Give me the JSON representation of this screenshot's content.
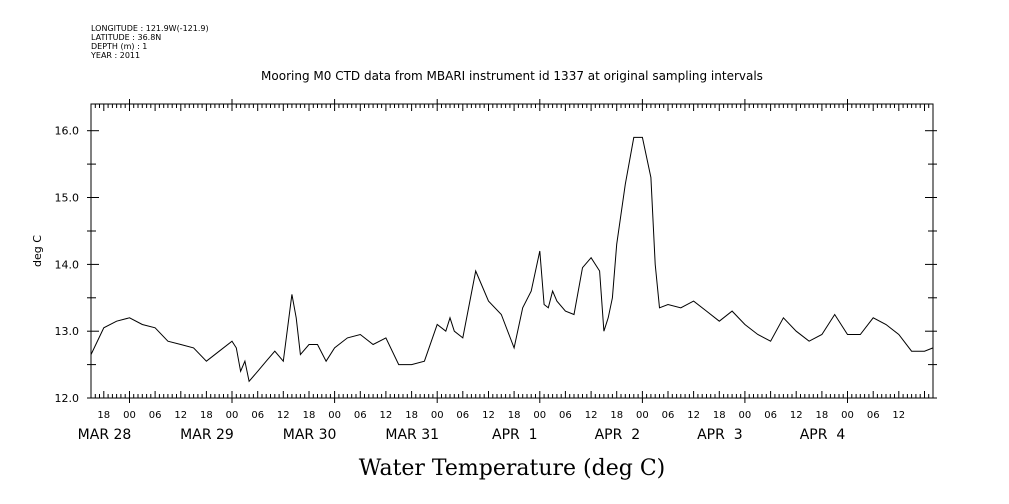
{
  "meta": {
    "longitude": "LONGITUDE : 121.9W(-121.9)",
    "latitude": "LATITUDE : 36.8N",
    "depth": "DEPTH (m) : 1",
    "year": "YEAR : 2011"
  },
  "chart_data": {
    "type": "line",
    "title": "Mooring M0 CTD data from MBARI instrument id 1337 at original sampling intervals",
    "ylabel": "deg C",
    "xlabel": "Water Temperature (deg C)",
    "ylim": [
      12.0,
      16.4
    ],
    "yticks": [
      "12.0",
      "13.0",
      "14.0",
      "15.0",
      "16.0"
    ],
    "xlim": [
      "2011-03-27T15:00",
      "2011-04-04T20:00"
    ],
    "hour_ticks": [
      "18",
      "00",
      "06",
      "12",
      "18",
      "00",
      "06",
      "12",
      "18",
      "00",
      "06",
      "12",
      "18",
      "00",
      "06",
      "12",
      "18",
      "00",
      "06",
      "12",
      "18",
      "00",
      "06",
      "12",
      "18",
      "00",
      "06",
      "12",
      "18",
      "00",
      "06",
      "12"
    ],
    "date_labels": [
      "MAR 28",
      "MAR 29",
      "MAR 30",
      "MAR 31",
      "APR  1",
      "APR  2",
      "APR  3",
      "APR  4"
    ],
    "grid": false,
    "series": [
      {
        "color": "#000000",
        "x": [
          "2011-03-27T15:00",
          "2011-03-27T18:00",
          "2011-03-27T21:00",
          "2011-03-28T00:00",
          "2011-03-28T03:00",
          "2011-03-28T06:00",
          "2011-03-28T09:00",
          "2011-03-28T12:00",
          "2011-03-28T15:00",
          "2011-03-28T18:00",
          "2011-03-28T21:00",
          "2011-03-29T00:00",
          "2011-03-29T01:00",
          "2011-03-29T02:00",
          "2011-03-29T03:00",
          "2011-03-29T04:00",
          "2011-03-29T06:00",
          "2011-03-29T08:00",
          "2011-03-29T10:00",
          "2011-03-29T12:00",
          "2011-03-29T14:00",
          "2011-03-29T15:00",
          "2011-03-29T16:00",
          "2011-03-29T18:00",
          "2011-03-29T20:00",
          "2011-03-29T22:00",
          "2011-03-30T00:00",
          "2011-03-30T03:00",
          "2011-03-30T06:00",
          "2011-03-30T09:00",
          "2011-03-30T12:00",
          "2011-03-30T15:00",
          "2011-03-30T18:00",
          "2011-03-30T21:00",
          "2011-03-31T00:00",
          "2011-03-31T02:00",
          "2011-03-31T03:00",
          "2011-03-31T04:00",
          "2011-03-31T06:00",
          "2011-03-31T09:00",
          "2011-03-31T12:00",
          "2011-03-31T15:00",
          "2011-03-31T18:00",
          "2011-03-31T20:00",
          "2011-03-31T22:00",
          "2011-04-01T00:00",
          "2011-04-01T01:00",
          "2011-04-01T02:00",
          "2011-04-01T03:00",
          "2011-04-01T04:00",
          "2011-04-01T06:00",
          "2011-04-01T08:00",
          "2011-04-01T10:00",
          "2011-04-01T12:00",
          "2011-04-01T14:00",
          "2011-04-01T15:00",
          "2011-04-01T16:00",
          "2011-04-01T17:00",
          "2011-04-01T18:00",
          "2011-04-01T20:00",
          "2011-04-01T22:00",
          "2011-04-02T00:00",
          "2011-04-02T02:00",
          "2011-04-02T03:00",
          "2011-04-02T04:00",
          "2011-04-02T06:00",
          "2011-04-02T09:00",
          "2011-04-02T12:00",
          "2011-04-02T15:00",
          "2011-04-02T18:00",
          "2011-04-02T21:00",
          "2011-04-03T00:00",
          "2011-04-03T03:00",
          "2011-04-03T06:00",
          "2011-04-03T09:00",
          "2011-04-03T12:00",
          "2011-04-03T15:00",
          "2011-04-03T18:00",
          "2011-04-03T21:00",
          "2011-04-04T00:00",
          "2011-04-04T03:00",
          "2011-04-04T06:00",
          "2011-04-04T09:00",
          "2011-04-04T12:00",
          "2011-04-04T15:00",
          "2011-04-04T18:00",
          "2011-04-04T20:00"
        ],
        "y": [
          12.65,
          13.05,
          13.15,
          13.2,
          13.1,
          13.05,
          12.85,
          12.8,
          12.75,
          12.55,
          12.7,
          12.85,
          12.75,
          12.4,
          12.55,
          12.25,
          12.4,
          12.55,
          12.7,
          12.55,
          13.55,
          13.2,
          12.65,
          12.8,
          12.8,
          12.55,
          12.75,
          12.9,
          12.95,
          12.8,
          12.9,
          12.5,
          12.5,
          12.55,
          13.1,
          13.0,
          13.2,
          13.0,
          12.9,
          13.9,
          13.45,
          13.25,
          12.75,
          13.35,
          13.6,
          14.2,
          13.4,
          13.35,
          13.6,
          13.45,
          13.3,
          13.25,
          13.95,
          14.1,
          13.9,
          13.0,
          13.2,
          13.5,
          14.3,
          15.2,
          15.9,
          15.9,
          15.3,
          14.0,
          13.35,
          13.4,
          13.35,
          13.45,
          13.3,
          13.15,
          13.3,
          13.1,
          12.95,
          12.85,
          13.2,
          13.0,
          12.85,
          12.95,
          13.25,
          12.95,
          12.95,
          13.2,
          13.1,
          12.95,
          12.7,
          12.7,
          12.75
        ]
      }
    ]
  }
}
